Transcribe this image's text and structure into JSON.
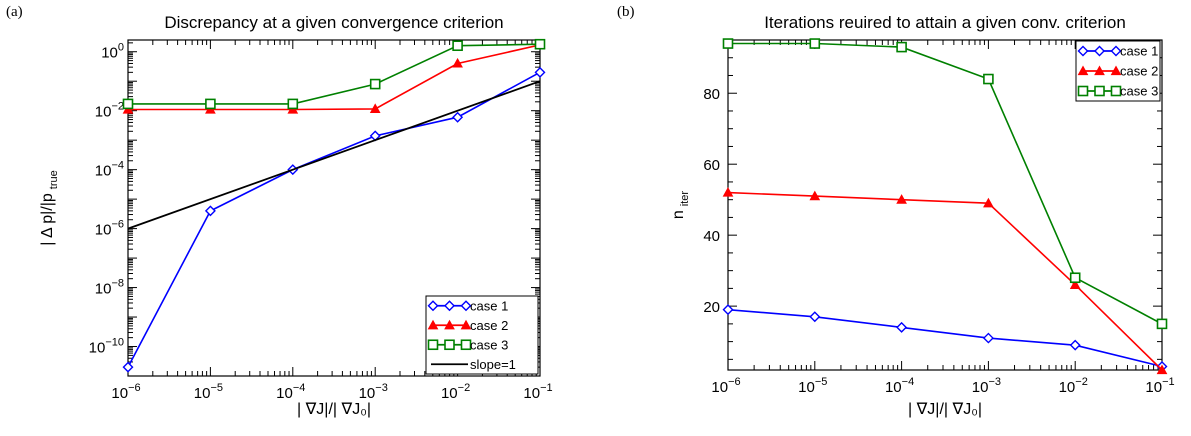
{
  "chart_data": [
    {
      "type": "line",
      "panel_label": "(a)",
      "title": "Discrepancy at a given convergence criterion",
      "xlabel": "| ∇J|/|  ∇J₀|",
      "ylabel": "| Δ p|/|p  true|",
      "ylabel_main": "| Δ p|/|p",
      "ylabel_sub": "true",
      "x_scale": "log",
      "y_scale": "log",
      "xlim": [
        1e-06,
        0.1
      ],
      "ylim": [
        1e-11,
        2.5
      ],
      "x_ticks": [
        1e-06,
        1e-05,
        0.0001,
        0.001,
        0.01,
        0.1
      ],
      "x_tick_labels": [
        {
          "base": "10",
          "exp": "−6"
        },
        {
          "base": "10",
          "exp": "−5"
        },
        {
          "base": "10",
          "exp": "−4"
        },
        {
          "base": "10",
          "exp": "−3"
        },
        {
          "base": "10",
          "exp": "−2"
        },
        {
          "base": "10",
          "exp": "−1"
        }
      ],
      "y_ticks": [
        1e-10,
        1e-08,
        1e-06,
        0.0001,
        0.01,
        1
      ],
      "y_tick_labels": [
        {
          "base": "10",
          "exp": "−10"
        },
        {
          "base": "10",
          "exp": "−8"
        },
        {
          "base": "10",
          "exp": "−6"
        },
        {
          "base": "10",
          "exp": "−4"
        },
        {
          "base": "10",
          "exp": "−2"
        },
        {
          "base": "10",
          "exp": "0"
        }
      ],
      "grid": false,
      "legend_position": "bottom-right",
      "series": [
        {
          "name": "case 1",
          "color": "#0000ff",
          "marker": "diamond",
          "x": [
            1e-06,
            1e-05,
            0.0001,
            0.001,
            0.01,
            0.1
          ],
          "y": [
            2e-11,
            4e-06,
            0.0001,
            0.0014,
            0.006,
            0.2
          ]
        },
        {
          "name": "case 2",
          "color": "#ff0000",
          "marker": "triangle",
          "x": [
            1e-06,
            1e-05,
            0.0001,
            0.001,
            0.01,
            0.1
          ],
          "y": [
            0.011,
            0.011,
            0.011,
            0.0115,
            0.4,
            1.7
          ]
        },
        {
          "name": "case 3",
          "color": "#008000",
          "marker": "square",
          "x": [
            1e-06,
            1e-05,
            0.0001,
            0.001,
            0.01,
            0.1
          ],
          "y": [
            0.017,
            0.017,
            0.017,
            0.08,
            1.6,
            1.8
          ]
        },
        {
          "name": "slope=1",
          "color": "#000000",
          "marker": "none",
          "x": [
            1e-06,
            0.1
          ],
          "y": [
            1e-06,
            0.1
          ]
        }
      ]
    },
    {
      "type": "line",
      "panel_label": "(b)",
      "title": "Iterations reuired to attain a given conv. criterion",
      "xlabel": "| ∇J|/|  ∇J₀|",
      "ylabel": "n iter",
      "ylabel_main": "n",
      "ylabel_sub": "iter",
      "x_scale": "log",
      "y_scale": "linear",
      "xlim": [
        1e-06,
        0.1
      ],
      "ylim": [
        2,
        95
      ],
      "x_ticks": [
        1e-06,
        1e-05,
        0.0001,
        0.001,
        0.01,
        0.1
      ],
      "x_tick_labels": [
        {
          "base": "10",
          "exp": "−6"
        },
        {
          "base": "10",
          "exp": "−5"
        },
        {
          "base": "10",
          "exp": "−4"
        },
        {
          "base": "10",
          "exp": "−3"
        },
        {
          "base": "10",
          "exp": "−2"
        },
        {
          "base": "10",
          "exp": "−1"
        }
      ],
      "y_ticks": [
        20,
        40,
        60,
        80
      ],
      "y_tick_labels": [
        "20",
        "40",
        "60",
        "80"
      ],
      "grid": false,
      "legend_position": "top-right",
      "series": [
        {
          "name": "case 1",
          "color": "#0000ff",
          "marker": "diamond",
          "x": [
            1e-06,
            1e-05,
            0.0001,
            0.001,
            0.01,
            0.1
          ],
          "y": [
            19,
            17,
            14,
            11,
            9,
            3
          ]
        },
        {
          "name": "case 2",
          "color": "#ff0000",
          "marker": "triangle",
          "x": [
            1e-06,
            1e-05,
            0.0001,
            0.001,
            0.01,
            0.1
          ],
          "y": [
            52,
            51,
            50,
            49,
            26,
            2
          ]
        },
        {
          "name": "case 3",
          "color": "#008000",
          "marker": "square",
          "x": [
            1e-06,
            1e-05,
            0.0001,
            0.001,
            0.01,
            0.1
          ],
          "y": [
            94,
            94,
            93,
            84,
            28,
            15
          ]
        }
      ]
    }
  ]
}
